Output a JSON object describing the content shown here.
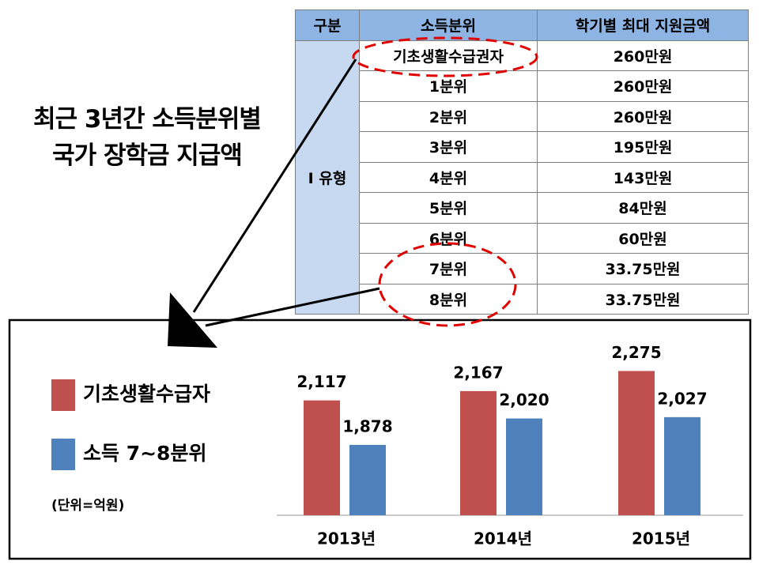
{
  "title": {
    "lines": [
      "최근 3년간 소득분위별",
      "국가 장학금 지급액"
    ]
  },
  "table": {
    "headers": [
      "구분",
      "소득분위",
      "학기별 최대 지원금액"
    ],
    "group": "I 유형",
    "rows": [
      [
        "기초생활수급권자",
        "260만원"
      ],
      [
        "1분위",
        "260만원"
      ],
      [
        "2분위",
        "260만원"
      ],
      [
        "3분위",
        "195만원"
      ],
      [
        "4분위",
        "143만원"
      ],
      [
        "5분위",
        "84만원"
      ],
      [
        "6분위",
        "60만원"
      ],
      [
        "7분위",
        "33.75만원"
      ],
      [
        "8분위",
        "33.75만원"
      ]
    ]
  },
  "chart_data": {
    "type": "bar",
    "unit_label": "(단위=억원)",
    "categories": [
      "2013년",
      "2014년",
      "2015년"
    ],
    "series": [
      {
        "name": "기초생활수급자",
        "color": "#c0504d",
        "values": [
          2117,
          2167,
          2275
        ],
        "value_labels": [
          "2,117",
          "2,167",
          "2,275"
        ]
      },
      {
        "name": "소득 7~8분위",
        "color": "#4f81bd",
        "values": [
          1878,
          2020,
          2027
        ],
        "value_labels": [
          "1,878",
          "2,020",
          "2,027"
        ]
      }
    ],
    "ylim": [
      1500,
      2400
    ],
    "legend": "left"
  }
}
